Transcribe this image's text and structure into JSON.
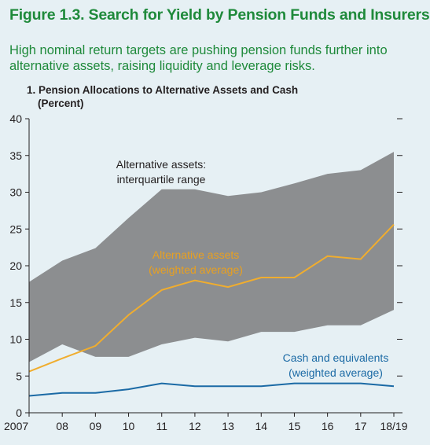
{
  "figure": {
    "title": "Figure 1.3. Search for Yield by Pension Funds and Insurers",
    "subtitle": "High nominal return targets are pushing pension funds further into alternative assets, raising liquidity and leverage risks."
  },
  "colors": {
    "background": "#e6f0f4",
    "title": "#1f8a3b",
    "range_fill": "#8c8e90",
    "alt_line": "#f0ad2e",
    "cash_line": "#1b6aa5",
    "alt_label": "#e8a020",
    "cash_label": "#1b6aa5",
    "text": "#231f20"
  },
  "chart_data": {
    "type": "area",
    "title": "1. Pension Allocations to Alternative Assets and Cash",
    "subtitle": "(Percent)",
    "categories": [
      "2007",
      "08",
      "09",
      "10",
      "11",
      "12",
      "13",
      "14",
      "15",
      "16",
      "17",
      "18/19"
    ],
    "ylim": [
      0,
      40
    ],
    "yticks": [
      0,
      5,
      10,
      15,
      20,
      25,
      30,
      35,
      40
    ],
    "grid": false,
    "band": {
      "name": "Alternative assets:\ninterquartile range",
      "upper": [
        17.8,
        20.7,
        22.4,
        26.5,
        30.4,
        30.4,
        29.5,
        30.0,
        31.2,
        32.5,
        33.0,
        35.5
      ],
      "lower": [
        6.9,
        9.3,
        7.6,
        7.6,
        9.3,
        10.2,
        9.7,
        11.0,
        11.0,
        11.9,
        11.9,
        14.0
      ]
    },
    "series": [
      {
        "name": "Alternative assets\n(weighted average)",
        "values": [
          5.6,
          7.4,
          9.1,
          13.3,
          16.7,
          18.0,
          17.1,
          18.4,
          18.4,
          21.3,
          20.9,
          25.6
        ]
      },
      {
        "name": "Cash and equivalents\n(weighted average)",
        "values": [
          2.3,
          2.7,
          2.7,
          3.2,
          4.0,
          3.6,
          3.6,
          3.6,
          4.0,
          4.0,
          4.0,
          3.6
        ]
      }
    ]
  }
}
